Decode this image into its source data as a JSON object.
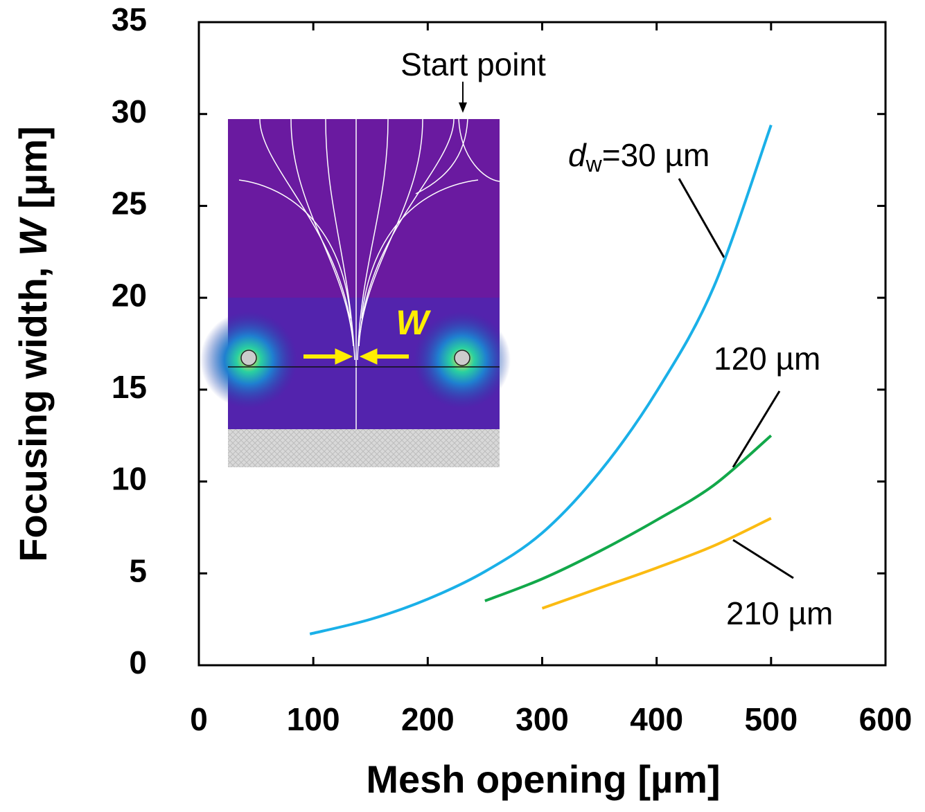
{
  "chart_data": {
    "type": "line",
    "x_label": "Mesh opening [µm]",
    "y_label_parts": [
      "Focusing width, ",
      "W",
      " [µm]"
    ],
    "xlim": [
      0,
      600
    ],
    "xticks": [
      0,
      100,
      200,
      300,
      400,
      500,
      600
    ],
    "ylim": [
      0,
      35
    ],
    "yticks": [
      0,
      5,
      10,
      15,
      20,
      25,
      30,
      35
    ],
    "series": [
      {
        "name_parts": [
          "d",
          "w",
          "=30 µm"
        ],
        "color": "#1ab0e8",
        "x": [
          97,
          150,
          200,
          250,
          300,
          350,
          400,
          450,
          500
        ],
        "values": [
          1.7,
          2.5,
          3.6,
          5.1,
          7.2,
          10.5,
          14.9,
          20.6,
          29.4
        ]
      },
      {
        "name": "120 µm",
        "color": "#12a84a",
        "x": [
          250,
          300,
          350,
          400,
          450,
          500
        ],
        "values": [
          3.5,
          4.7,
          6.2,
          7.9,
          9.8,
          12.5
        ]
      },
      {
        "name": "210 µm",
        "color": "#fbbb12",
        "x": [
          300,
          350,
          400,
          450,
          500
        ],
        "values": [
          3.1,
          4.2,
          5.3,
          6.5,
          8.0
        ]
      }
    ],
    "inset_labels": {
      "start": "Start point",
      "width": "W"
    }
  }
}
